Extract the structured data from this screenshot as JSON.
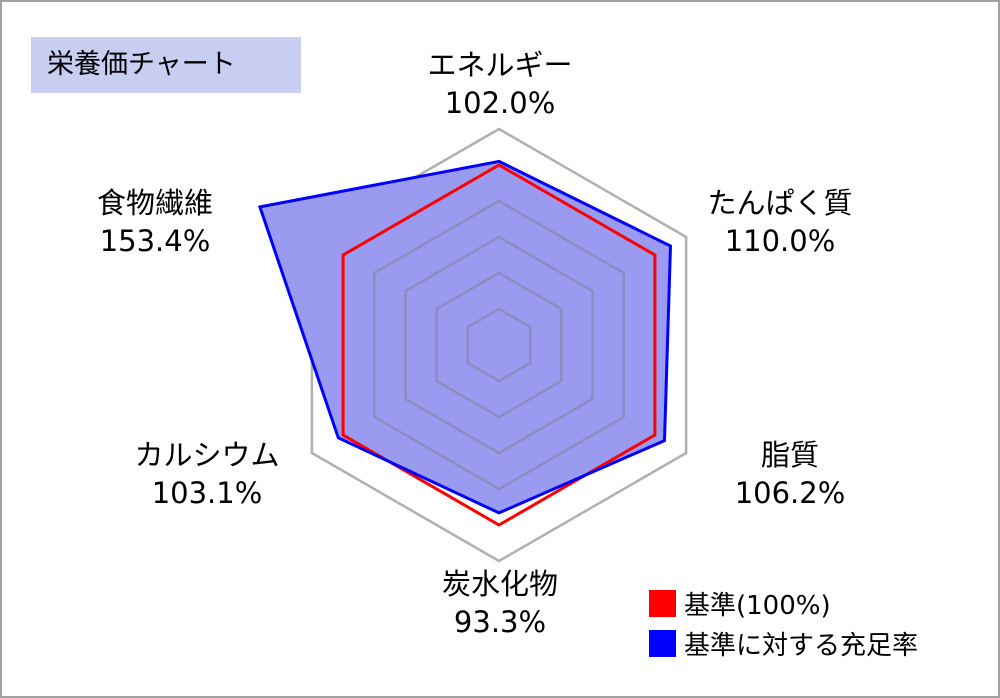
{
  "title": "栄養価チャート",
  "chart_data": {
    "type": "radar",
    "title": "栄養価チャート",
    "categories": [
      "エネルギー",
      "たんぱく質",
      "脂質",
      "炭水化物",
      "カルシウム",
      "食物繊維"
    ],
    "value_labels": [
      "102.0%",
      "110.0%",
      "106.2%",
      "93.3%",
      "103.1%",
      "153.4%"
    ],
    "rmax": 120,
    "grid_levels": [
      20,
      40,
      60,
      80,
      100,
      120
    ],
    "series": [
      {
        "name": "基準(100%)",
        "values": [
          100,
          100,
          100,
          100,
          100,
          100
        ],
        "color": "#ff0000"
      },
      {
        "name": "基準に対する充足率",
        "values": [
          102.0,
          110.0,
          106.2,
          93.3,
          103.1,
          153.4
        ],
        "color": "#0000ff",
        "fill": "#9a9af0"
      }
    ],
    "grid_color_outer": "#b0b0b0",
    "grid_color_inner": "#8c8cc0",
    "legend_position": "bottom-right"
  }
}
